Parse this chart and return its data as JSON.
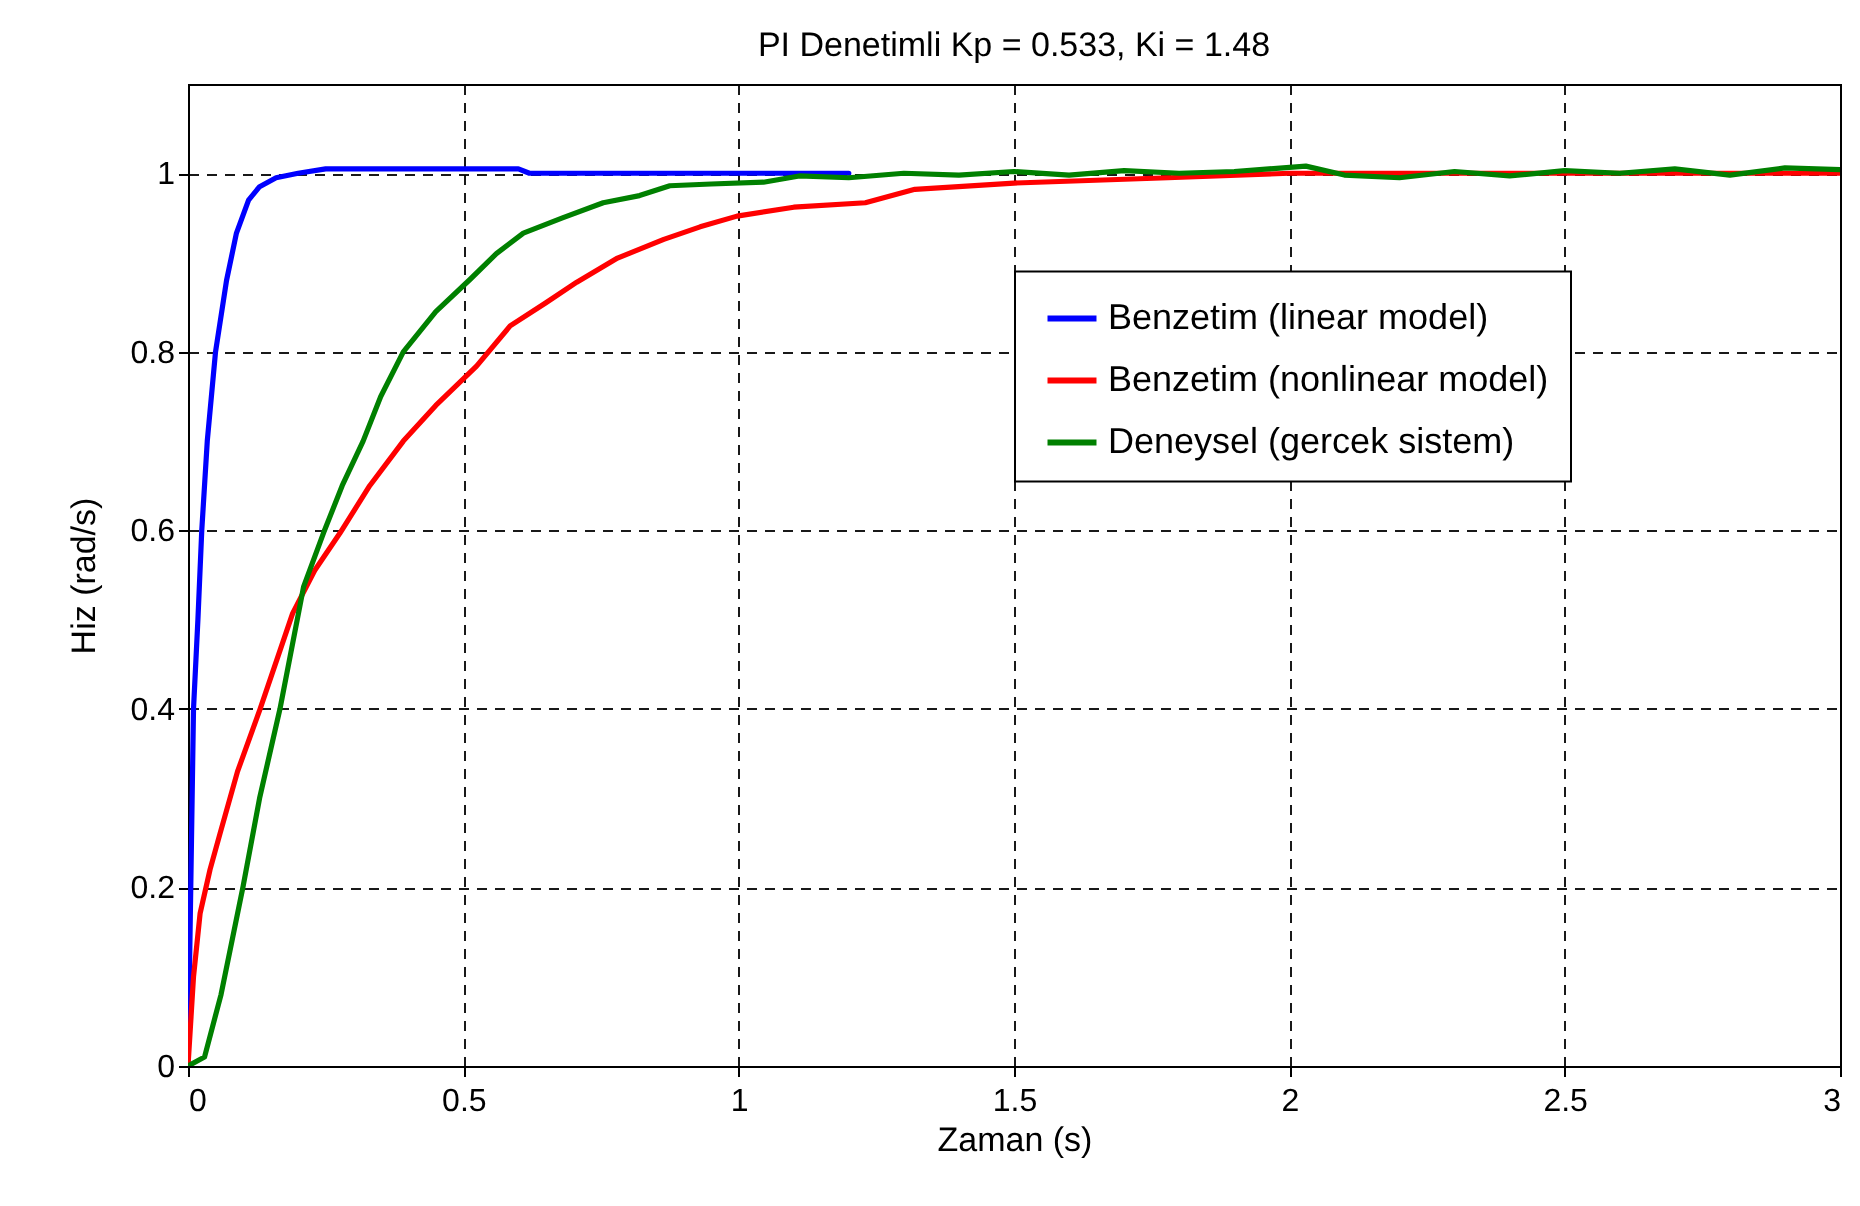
{
  "chart_data": {
    "type": "line",
    "title": "PI Denetimli Kp = 0.533, Ki = 1.48",
    "xlabel": "Zaman (s)",
    "ylabel": "Hiz (rad/s)",
    "xlim": [
      0,
      3
    ],
    "xticks": [
      0,
      0.5,
      1,
      1.5,
      2,
      2.5,
      3
    ],
    "ylim": [
      0,
      1.1
    ],
    "yticks": [
      0,
      0.2,
      0.4,
      0.6,
      0.8,
      1
    ],
    "grid": true,
    "legend": "right",
    "line_style": "solid",
    "marker": "none",
    "series": [
      {
        "name": "Benzetim (linear model)",
        "color": "#0000ff",
        "x": [
          0,
          0.005,
          0.01,
          0.018,
          0.025,
          0.035,
          0.05,
          0.07,
          0.088,
          0.11,
          0.13,
          0.16,
          0.2,
          0.25,
          0.6,
          0.62,
          1,
          1.2
        ],
        "values": [
          0,
          0.2,
          0.4,
          0.5,
          0.6,
          0.7,
          0.8,
          0.88,
          0.933,
          0.97,
          0.985,
          0.995,
          1,
          1.005,
          1.005,
          1,
          1,
          1
        ]
      },
      {
        "name": "Benzetim (nonlinear model)",
        "color": "#ff0000",
        "x": [
          0,
          0.01,
          0.022,
          0.04,
          0.058,
          0.09,
          0.131,
          0.19,
          0.23,
          0.276,
          0.33,
          0.391,
          0.45,
          0.524,
          0.585,
          0.65,
          0.706,
          0.78,
          0.864,
          0.93,
          0.997,
          1.1,
          1.23,
          1.32,
          1.5,
          1.78,
          2.0,
          2.5,
          3
        ],
        "values": [
          0,
          0.1,
          0.171,
          0.22,
          0.26,
          0.33,
          0.4,
          0.507,
          0.555,
          0.597,
          0.65,
          0.7,
          0.74,
          0.784,
          0.829,
          0.855,
          0.878,
          0.905,
          0.926,
          0.94,
          0.952,
          0.962,
          0.967,
          0.982,
          0.989,
          0.995,
          1,
          1,
          1
        ]
      },
      {
        "name": "Deneysel (gercek sistem)",
        "color": "#008000",
        "x": [
          0,
          0.03,
          0.06,
          0.1,
          0.13,
          0.167,
          0.21,
          0.246,
          0.28,
          0.318,
          0.35,
          0.391,
          0.45,
          0.512,
          0.56,
          0.609,
          0.68,
          0.754,
          0.82,
          0.875,
          0.95,
          1.045,
          1.11,
          1.2,
          1.3,
          1.4,
          1.5,
          1.6,
          1.7,
          1.8,
          1.9,
          2.03,
          2.1,
          2.2,
          2.3,
          2.4,
          2.5,
          2.6,
          2.7,
          2.8,
          2.9,
          3
        ],
        "values": [
          0,
          0.01,
          0.08,
          0.201,
          0.3,
          0.4,
          0.537,
          0.597,
          0.65,
          0.7,
          0.75,
          0.8,
          0.845,
          0.881,
          0.91,
          0.933,
          0.95,
          0.967,
          0.975,
          0.986,
          0.988,
          0.99,
          0.997,
          0.995,
          1,
          0.998,
          1.002,
          0.998,
          1.003,
          1,
          1.002,
          1.008,
          0.998,
          0.995,
          1.002,
          0.997,
          1.003,
          1,
          1.005,
          0.998,
          1.006,
          1.004
        ]
      }
    ]
  }
}
